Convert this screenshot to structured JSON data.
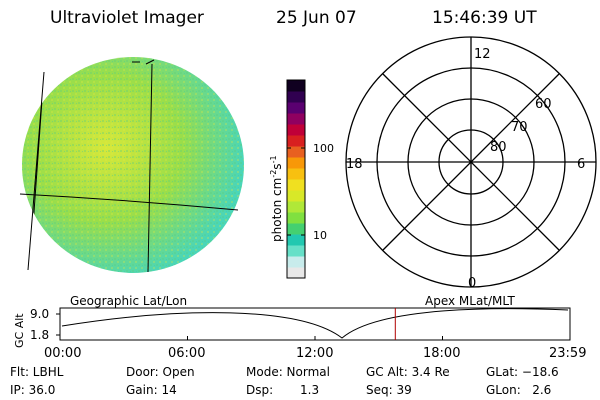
{
  "header": {
    "instrument": "Ultraviolet Imager",
    "date": "25 Jun 07",
    "time": "15:46:39 UT"
  },
  "colorbar": {
    "unit_label": "photon cm",
    "unit_sup1": "-2",
    "unit_mid": "s",
    "unit_sup2": "-1",
    "tick_100": "100",
    "tick_10": "10",
    "colors": [
      "#e8e8e8",
      "#c8ecec",
      "#66e0c8",
      "#22c8b0",
      "#44d070",
      "#80e040",
      "#b0e838",
      "#d8e828",
      "#f0e020",
      "#f8c010",
      "#f89808",
      "#e86020",
      "#d82020",
      "#c00038",
      "#900060",
      "#5a0070",
      "#300050",
      "#100020"
    ]
  },
  "image": {
    "globe_color": "#9ade4a",
    "highlight_color": "#d6e83a",
    "edge_color": "#4ad6b8"
  },
  "polar": {
    "label_top": "12",
    "label_bottom": "0",
    "label_left": "18",
    "label_right": "6",
    "ring_60": "60",
    "ring_70": "70",
    "ring_80": "80"
  },
  "labels": {
    "left": "Geographic Lat/Lon",
    "right": "Apex MLat/MLT"
  },
  "altitude_plot": {
    "ylabel": "GC Alt",
    "y_top": "9.0",
    "y_bottom": "1.8",
    "x_ticks": [
      "00:00",
      "06:00",
      "12:00",
      "18:00",
      "23:59"
    ],
    "marker_time_hours": 15.78,
    "marker_color": "#b00000"
  },
  "info": {
    "flt": "Flt: LBHL",
    "ip": "IP: 36.0",
    "door": "Door: Open",
    "gain": "Gain: 14",
    "mode": "Mode: Normal",
    "dsp_label": "Dsp:",
    "dsp_value": "1.3",
    "gcalt": "GC Alt: 3.4 Re",
    "seq": "Seq: 39",
    "glat": "GLat: −18.6",
    "glon": "GLon:   2.6"
  }
}
